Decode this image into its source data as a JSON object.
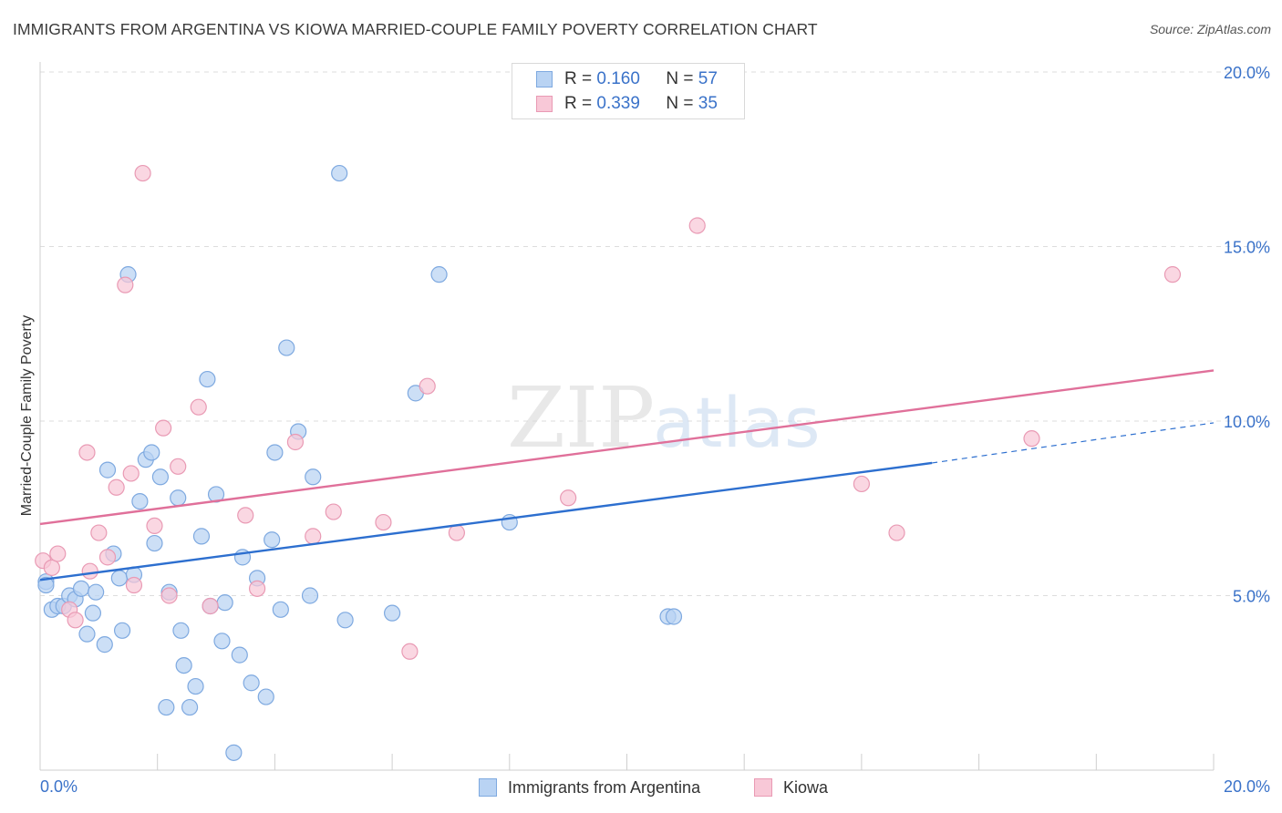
{
  "title": "IMMIGRANTS FROM ARGENTINA VS KIOWA MARRIED-COUPLE FAMILY POVERTY CORRELATION CHART",
  "source": "Source: ZipAtlas.com",
  "watermark": {
    "part1": "ZIP",
    "part2": "atlas"
  },
  "legend": {
    "r_label": "R =",
    "n_label": "N =",
    "rows": [
      {
        "r": "0.160",
        "n": "57"
      },
      {
        "r": "0.339",
        "n": "35"
      }
    ]
  },
  "colors": {
    "blue_fill": "#b9d3f3",
    "blue_stroke": "#7ea9e0",
    "blue_line": "#2d6fcf",
    "pink_fill": "#f8c8d7",
    "pink_stroke": "#e99ab4",
    "pink_line": "#e0709a",
    "axis_text": "#3a72c9",
    "grid": "#dddddd"
  },
  "chart_data": {
    "type": "scatter",
    "xlabel": "",
    "ylabel": "Married-Couple Family Poverty",
    "xlim": [
      0,
      20
    ],
    "ylim": [
      0,
      20
    ],
    "x_tick_labels": [
      "0.0%",
      "20.0%"
    ],
    "y_ticks": [
      5,
      10,
      15,
      20
    ],
    "y_tick_labels": [
      "5.0%",
      "10.0%",
      "15.0%",
      "20.0%"
    ],
    "series": [
      {
        "name": "Immigrants from Argentina",
        "color": "#b9d3f3",
        "trend": {
          "x0": 0,
          "y0": 5.45,
          "x1": 15.2,
          "y1": 8.8,
          "dash_x1": 20,
          "dash_y1": 9.95
        },
        "points": [
          [
            0.1,
            5.4
          ],
          [
            0.2,
            4.6
          ],
          [
            0.3,
            4.7
          ],
          [
            0.4,
            4.7
          ],
          [
            0.5,
            5.0
          ],
          [
            0.6,
            4.9
          ],
          [
            0.7,
            5.2
          ],
          [
            0.8,
            3.9
          ],
          [
            0.9,
            4.5
          ],
          [
            0.95,
            5.1
          ],
          [
            1.1,
            3.6
          ],
          [
            1.15,
            8.6
          ],
          [
            1.25,
            6.2
          ],
          [
            1.35,
            5.5
          ],
          [
            1.4,
            4.0
          ],
          [
            1.5,
            14.2
          ],
          [
            1.6,
            5.6
          ],
          [
            1.7,
            7.7
          ],
          [
            1.8,
            8.9
          ],
          [
            1.9,
            9.1
          ],
          [
            1.95,
            6.5
          ],
          [
            2.05,
            8.4
          ],
          [
            2.15,
            1.8
          ],
          [
            2.2,
            5.1
          ],
          [
            2.35,
            7.8
          ],
          [
            2.4,
            4.0
          ],
          [
            2.45,
            3.0
          ],
          [
            2.55,
            1.8
          ],
          [
            2.65,
            2.4
          ],
          [
            2.75,
            6.7
          ],
          [
            2.85,
            11.2
          ],
          [
            2.9,
            4.7
          ],
          [
            3.0,
            7.9
          ],
          [
            3.1,
            3.7
          ],
          [
            3.15,
            4.8
          ],
          [
            3.3,
            0.5
          ],
          [
            3.4,
            3.3
          ],
          [
            3.45,
            6.1
          ],
          [
            3.6,
            2.5
          ],
          [
            3.7,
            5.5
          ],
          [
            3.85,
            2.1
          ],
          [
            3.95,
            6.6
          ],
          [
            4.0,
            9.1
          ],
          [
            4.1,
            4.6
          ],
          [
            4.2,
            12.1
          ],
          [
            4.4,
            9.7
          ],
          [
            4.6,
            5.0
          ],
          [
            4.65,
            8.4
          ],
          [
            5.1,
            17.1
          ],
          [
            5.2,
            4.3
          ],
          [
            6.0,
            4.5
          ],
          [
            6.4,
            10.8
          ],
          [
            6.8,
            14.2
          ],
          [
            8.0,
            7.1
          ],
          [
            10.7,
            4.4
          ],
          [
            10.8,
            4.4
          ],
          [
            0.1,
            5.3
          ]
        ]
      },
      {
        "name": "Kiowa",
        "color": "#f8c8d7",
        "trend": {
          "x0": 0,
          "y0": 7.05,
          "x1": 20,
          "y1": 11.45
        },
        "points": [
          [
            0.05,
            6.0
          ],
          [
            0.2,
            5.8
          ],
          [
            0.3,
            6.2
          ],
          [
            0.5,
            4.6
          ],
          [
            0.6,
            4.3
          ],
          [
            0.8,
            9.1
          ],
          [
            0.85,
            5.7
          ],
          [
            1.0,
            6.8
          ],
          [
            1.15,
            6.1
          ],
          [
            1.3,
            8.1
          ],
          [
            1.45,
            13.9
          ],
          [
            1.55,
            8.5
          ],
          [
            1.6,
            5.3
          ],
          [
            1.75,
            17.1
          ],
          [
            1.95,
            7.0
          ],
          [
            2.1,
            9.8
          ],
          [
            2.2,
            5.0
          ],
          [
            2.35,
            8.7
          ],
          [
            2.7,
            10.4
          ],
          [
            2.9,
            4.7
          ],
          [
            3.5,
            7.3
          ],
          [
            3.7,
            5.2
          ],
          [
            4.35,
            9.4
          ],
          [
            4.65,
            6.7
          ],
          [
            5.0,
            7.4
          ],
          [
            5.85,
            7.1
          ],
          [
            6.3,
            3.4
          ],
          [
            6.6,
            11.0
          ],
          [
            7.1,
            6.8
          ],
          [
            9.0,
            7.8
          ],
          [
            11.2,
            15.6
          ],
          [
            14.0,
            8.2
          ],
          [
            14.6,
            6.8
          ],
          [
            16.9,
            9.5
          ],
          [
            19.3,
            14.2
          ]
        ]
      }
    ]
  }
}
